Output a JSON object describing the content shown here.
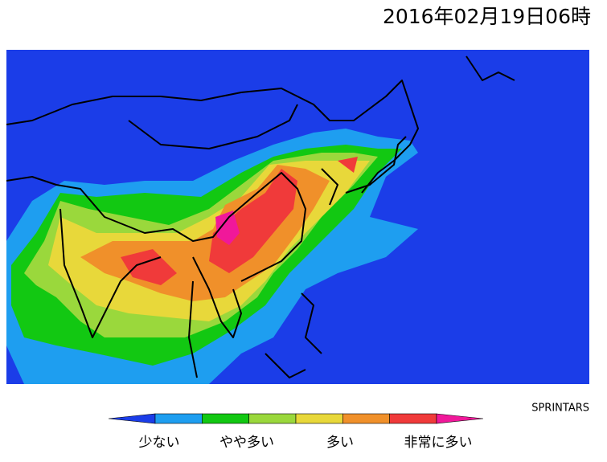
{
  "header": {
    "title": "2016年02月19日06時",
    "credit": "SPRINTARS"
  },
  "legend": {
    "low_color": "#1b3de8",
    "colors": [
      "#1e9ef0",
      "#12c812",
      "#9ad83c",
      "#e8d83a",
      "#f0902a",
      "#f03a3a"
    ],
    "high_color": "#f0189a",
    "labels": [
      "少ない",
      "やや多い",
      "多い",
      "非常に多い"
    ]
  }
}
